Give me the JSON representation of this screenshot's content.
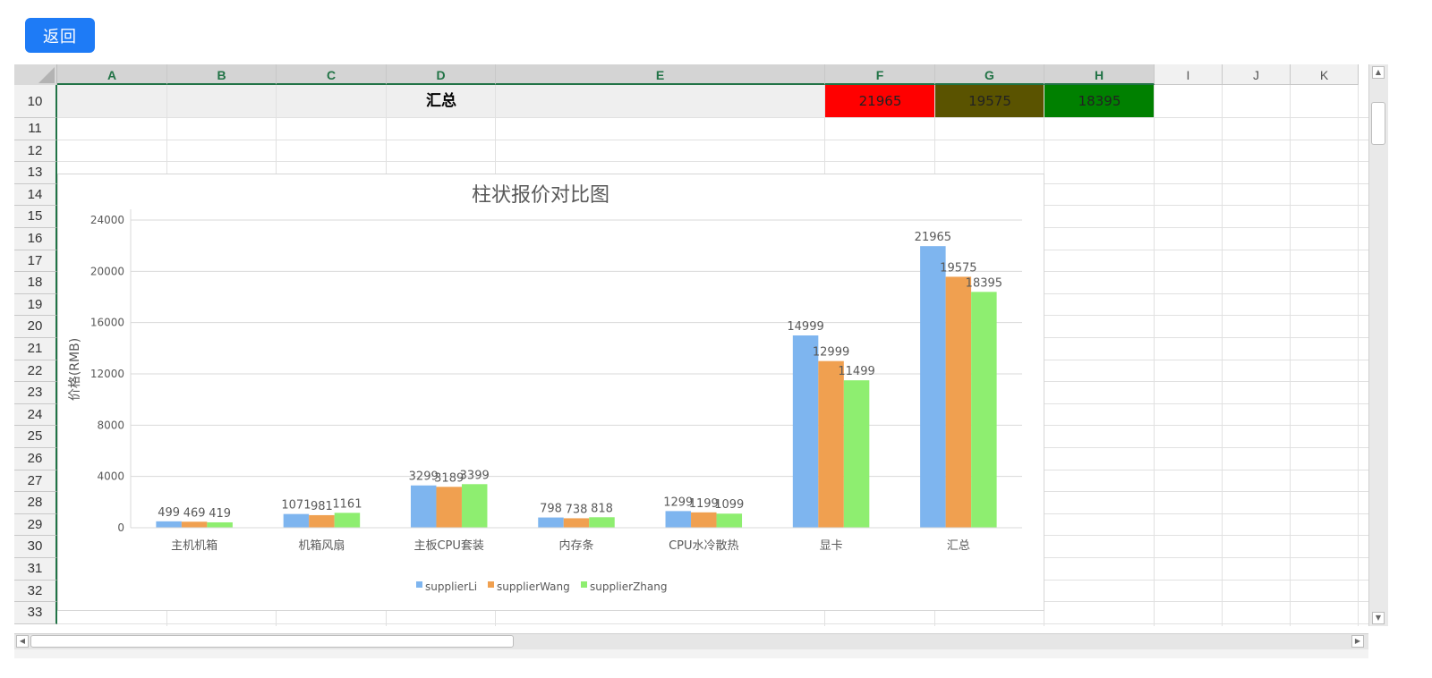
{
  "toolbar": {
    "back_label": "返回"
  },
  "sheet": {
    "columns": [
      "A",
      "B",
      "C",
      "D",
      "E",
      "F",
      "G",
      "H",
      "I",
      "J",
      "K"
    ],
    "rows": [
      "10",
      "11",
      "12",
      "13",
      "14",
      "15",
      "16",
      "17",
      "18",
      "19",
      "20",
      "21",
      "22",
      "23",
      "24",
      "25",
      "26",
      "27",
      "28",
      "29",
      "30",
      "31",
      "32",
      "33"
    ],
    "summary_row": {
      "label": "汇总",
      "f_value": "21965",
      "g_value": "19575",
      "h_value": "18395",
      "f_color": "#ff0000",
      "g_color": "#5a5300",
      "h_color": "#008000"
    }
  },
  "chart_data": {
    "type": "bar",
    "title": "柱状报价对比图",
    "ylabel": "价格(RMB)",
    "xlabel": "",
    "ylim": [
      0,
      24000
    ],
    "yticks": [
      0,
      4000,
      8000,
      12000,
      16000,
      20000,
      24000
    ],
    "grid": true,
    "legend": "bottom",
    "categories": [
      "主机机箱",
      "机箱风扇",
      "主板CPU套装",
      "内存条",
      "CPU水冷散热",
      "显卡",
      "汇总"
    ],
    "series": [
      {
        "name": "supplierLi",
        "color": "#7eb5ef",
        "values": [
          499,
          1071,
          3299,
          798,
          1299,
          14999,
          21965
        ]
      },
      {
        "name": "supplierWang",
        "color": "#f0a050",
        "values": [
          469,
          981,
          3189,
          738,
          1199,
          12999,
          19575
        ]
      },
      {
        "name": "supplierZhang",
        "color": "#8eee70",
        "values": [
          419,
          1161,
          3399,
          818,
          1099,
          11499,
          18395
        ]
      }
    ]
  }
}
